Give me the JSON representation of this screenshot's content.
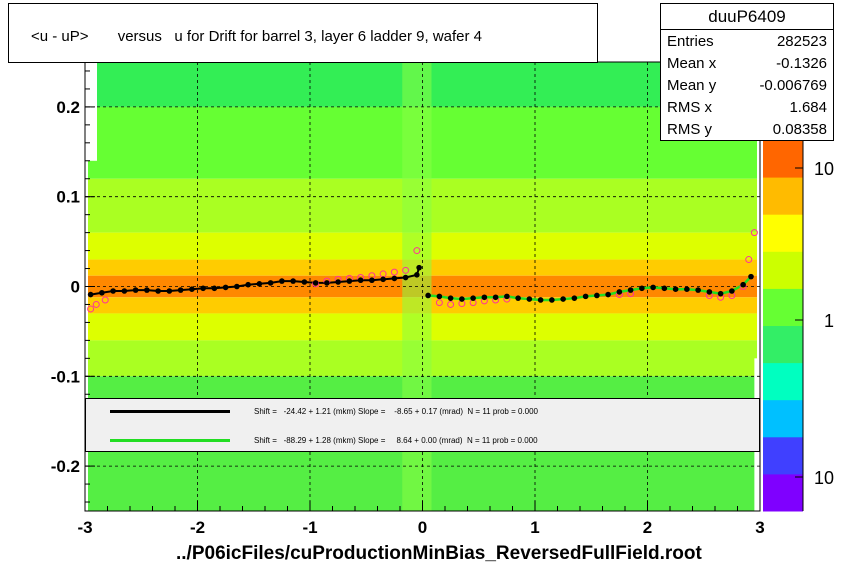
{
  "title": "<u - uP>       versus   u for Drift for barrel 3, layer 6 ladder 9, wafer 4",
  "stats": {
    "name": "duuP6409",
    "rows": [
      {
        "label": "Entries",
        "value": "282523"
      },
      {
        "label": "Mean x",
        "value": "-0.1326"
      },
      {
        "label": "Mean y",
        "value": "-0.006769"
      },
      {
        "label": "RMS x",
        "value": "1.684"
      },
      {
        "label": "RMS y",
        "value": "0.08358"
      }
    ]
  },
  "legend": [
    {
      "text": "Shift =   -24.42 + 1.21 (mkm) Slope =    -8.65 + 0.17 (mrad)  N = 11 prob = 0.000",
      "color": "#000000"
    },
    {
      "text": "Shift =   -88.29 + 1.28 (mkm) Slope =     8.64 + 0.00 (mrad)  N = 11 prob = 0.000",
      "color": "#22dd22"
    }
  ],
  "x_axis_title": "../P06icFiles/cuProductionMinBias_ReversedFullField.root",
  "chart_data": {
    "type": "heatmap",
    "xlim": [
      -3,
      3
    ],
    "ylim": [
      -0.25,
      0.25
    ],
    "x_ticks": [
      -3,
      -2,
      -1,
      0,
      1,
      2,
      3
    ],
    "y_ticks": [
      -0.2,
      -0.1,
      0,
      0.1,
      0.2
    ],
    "x_tick_labels": [
      "-3",
      "-2",
      "-1",
      "0",
      "1",
      "2",
      "3"
    ],
    "y_tick_labels": [
      "-0.2",
      "-0.1",
      "0",
      "0.1",
      "0.2"
    ],
    "grid": true,
    "colorbar": {
      "labels": [
        "10",
        "1",
        "10"
      ],
      "colors": [
        "#7f00ff",
        "#4040ff",
        "#00c0ff",
        "#00ffc0",
        "#33ee66",
        "#66ff33",
        "#ccff00",
        "#ffff00",
        "#ffbb00",
        "#ff6600"
      ]
    },
    "series": [
      {
        "marker": "filled-circle",
        "color": "#000000",
        "x": [
          -2.95,
          -2.85,
          -2.75,
          -2.65,
          -2.55,
          -2.45,
          -2.35,
          -2.25,
          -2.15,
          -2.05,
          -1.95,
          -1.85,
          -1.75,
          -1.65,
          -1.55,
          -1.45,
          -1.35,
          -1.25,
          -1.15,
          -1.05,
          -0.95,
          -0.85,
          -0.75,
          -0.65,
          -0.55,
          -0.45,
          -0.35,
          -0.25,
          -0.15,
          -0.05,
          -0.03,
          0.05,
          0.15,
          0.25,
          0.35,
          0.45,
          0.55,
          0.65,
          0.75,
          0.85,
          0.95,
          1.05,
          1.15,
          1.25,
          1.35,
          1.45,
          1.55,
          1.65,
          1.75,
          1.85,
          1.95,
          2.05,
          2.15,
          2.25,
          2.35,
          2.45,
          2.55,
          2.65,
          2.75,
          2.85,
          2.92
        ],
        "y": [
          -0.009,
          -0.007,
          -0.005,
          -0.005,
          -0.004,
          -0.004,
          -0.005,
          -0.005,
          -0.004,
          -0.003,
          -0.002,
          -0.002,
          -0.001,
          0.0,
          0.002,
          0.003,
          0.004,
          0.006,
          0.006,
          0.005,
          0.004,
          0.004,
          0.005,
          0.006,
          0.007,
          0.007,
          0.008,
          0.009,
          0.01,
          0.013,
          0.021,
          -0.01,
          -0.011,
          -0.013,
          -0.014,
          -0.013,
          -0.012,
          -0.012,
          -0.011,
          -0.013,
          -0.014,
          -0.015,
          -0.015,
          -0.014,
          -0.013,
          -0.011,
          -0.01,
          -0.009,
          -0.006,
          -0.004,
          -0.002,
          -0.001,
          -0.002,
          -0.003,
          -0.003,
          -0.004,
          -0.006,
          -0.008,
          -0.005,
          0.002,
          0.011
        ]
      },
      {
        "marker": "open-circle",
        "color": "#ff3399",
        "x": [
          -2.95,
          -2.9,
          -2.82,
          -0.95,
          -0.85,
          -0.75,
          -0.65,
          -0.55,
          -0.45,
          -0.35,
          -0.25,
          -0.15,
          -0.05,
          0.15,
          0.25,
          0.35,
          0.45,
          0.55,
          0.65,
          0.75,
          1.75,
          1.85,
          2.55,
          2.65,
          2.75,
          2.85,
          2.9,
          2.95
        ],
        "y": [
          -0.025,
          -0.02,
          -0.015,
          0.003,
          0.006,
          0.008,
          0.009,
          0.01,
          0.012,
          0.014,
          0.016,
          0.018,
          0.04,
          -0.018,
          -0.02,
          -0.019,
          -0.018,
          -0.016,
          -0.015,
          -0.014,
          -0.009,
          -0.008,
          -0.01,
          -0.012,
          -0.01,
          0.0,
          0.03,
          0.06
        ]
      }
    ]
  }
}
